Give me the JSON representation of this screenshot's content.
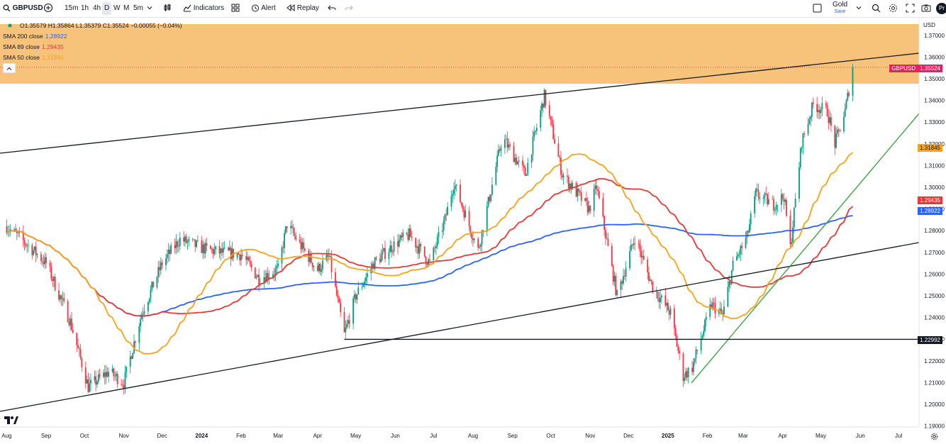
{
  "toolbar": {
    "symbol": "GBPUSD",
    "intervals": [
      "15m",
      "1h",
      "4h",
      "D",
      "W",
      "M",
      "5m"
    ],
    "indicators_label": "Indicators",
    "alert_label": "Alert",
    "replay_label": "Replay",
    "layout_name": "Gold",
    "layout_sub": "Save",
    "profile_initials": "Pr"
  },
  "legend": {
    "ohlc": "O1.35579 H1.35864 L1.35379 C1.35524 −0.00055 (−0.04%)",
    "items": [
      {
        "label": "SMA 200 close",
        "value": "1.28922",
        "color": "#2962ff"
      },
      {
        "label": "SMA 89 close",
        "value": "1.29435",
        "color": "#e53935"
      },
      {
        "label": "SMA 50 close",
        "value": "1.31845",
        "color": "#f7a21b"
      }
    ]
  },
  "currency": "USD",
  "price_labels": {
    "symbol_tag": "GBPUSD",
    "last": "1.35524",
    "sma50": "1.31845",
    "sma89": "1.29435",
    "sma200": "1.28922",
    "hline": "1.22992"
  },
  "colors": {
    "up": "#089981",
    "down": "#f23645",
    "zone": "#f7c27a",
    "sma200": "#2962ff",
    "sma89": "#e53935",
    "sma50": "#f7a21b",
    "trend_green": "#43a047"
  },
  "chart_data": {
    "type": "candlestick",
    "symbol": "GBPUSD",
    "timeframe": "D",
    "y_ticks": [
      "1.19000",
      "1.20000",
      "1.21000",
      "1.22000",
      "1.23000",
      "1.24000",
      "1.25000",
      "1.26000",
      "1.27000",
      "1.28000",
      "1.29000",
      "1.30000",
      "1.31000",
      "1.32000",
      "1.33000",
      "1.34000",
      "1.35000",
      "1.36000",
      "1.37000"
    ],
    "ylim": [
      1.19,
      1.37
    ],
    "x_ticks": [
      "Aug",
      "Sep",
      "Oct",
      "Nov",
      "Dec",
      "2024",
      "Feb",
      "Mar",
      "Apr",
      "May",
      "Jun",
      "Jul",
      "Aug",
      "Sep",
      "Oct",
      "Nov",
      "Dec",
      "2025",
      "Feb",
      "Mar",
      "Apr",
      "May",
      "Jun",
      "Jul"
    ],
    "price_anchors": [
      [
        "2023-08-01",
        1.282
      ],
      [
        "2023-08-20",
        1.272
      ],
      [
        "2023-09-01",
        1.265
      ],
      [
        "2023-09-20",
        1.238
      ],
      [
        "2023-10-04",
        1.208
      ],
      [
        "2023-10-20",
        1.215
      ],
      [
        "2023-11-01",
        1.21
      ],
      [
        "2023-11-15",
        1.242
      ],
      [
        "2023-12-01",
        1.265
      ],
      [
        "2023-12-15",
        1.276
      ],
      [
        "2024-01-01",
        1.272
      ],
      [
        "2024-01-15",
        1.27
      ],
      [
        "2024-02-01",
        1.269
      ],
      [
        "2024-02-15",
        1.258
      ],
      [
        "2024-03-01",
        1.262
      ],
      [
        "2024-03-08",
        1.283
      ],
      [
        "2024-03-20",
        1.272
      ],
      [
        "2024-04-01",
        1.262
      ],
      [
        "2024-04-10",
        1.268
      ],
      [
        "2024-04-22",
        1.232
      ],
      [
        "2024-05-01",
        1.25
      ],
      [
        "2024-05-15",
        1.265
      ],
      [
        "2024-06-01",
        1.274
      ],
      [
        "2024-06-12",
        1.278
      ],
      [
        "2024-06-28",
        1.265
      ],
      [
        "2024-07-10",
        1.285
      ],
      [
        "2024-07-17",
        1.302
      ],
      [
        "2024-08-05",
        1.271
      ],
      [
        "2024-08-24",
        1.323
      ],
      [
        "2024-09-11",
        1.306
      ],
      [
        "2024-09-26",
        1.342
      ],
      [
        "2024-10-10",
        1.306
      ],
      [
        "2024-10-31",
        1.29
      ],
      [
        "2024-11-06",
        1.3
      ],
      [
        "2024-11-22",
        1.25
      ],
      [
        "2024-12-06",
        1.277
      ],
      [
        "2024-12-20",
        1.254
      ],
      [
        "2025-01-03",
        1.242
      ],
      [
        "2025-01-13",
        1.213
      ],
      [
        "2025-01-20",
        1.217
      ],
      [
        "2025-01-31",
        1.238
      ],
      [
        "2025-02-04",
        1.246
      ],
      [
        "2025-02-13",
        1.241
      ],
      [
        "2025-02-21",
        1.264
      ],
      [
        "2025-03-04",
        1.277
      ],
      [
        "2025-03-11",
        1.297
      ],
      [
        "2025-03-25",
        1.292
      ],
      [
        "2025-04-02",
        1.296
      ],
      [
        "2025-04-07",
        1.272
      ],
      [
        "2025-04-16",
        1.321
      ],
      [
        "2025-04-25",
        1.338
      ],
      [
        "2025-05-06",
        1.335
      ],
      [
        "2025-05-12",
        1.32
      ],
      [
        "2025-05-20",
        1.335
      ],
      [
        "2025-05-26",
        1.355
      ]
    ],
    "hline": 1.22992,
    "zone": [
      1.3485,
      1.3712
    ],
    "last_price": 1.35524
  }
}
